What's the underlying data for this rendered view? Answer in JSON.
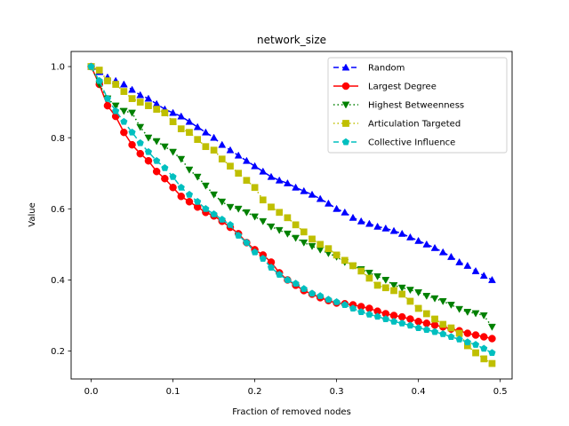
{
  "chart_data": {
    "type": "line",
    "title": "network_size",
    "xlabel": "Fraction of removed nodes",
    "ylabel": "Value",
    "xlim": [
      -0.0245,
      0.5145
    ],
    "ylim": [
      0.1215,
      1.0425
    ],
    "xticks": [
      0.0,
      0.1,
      0.2,
      0.3,
      0.4,
      0.5
    ],
    "xtick_labels": [
      "0.0",
      "0.1",
      "0.2",
      "0.3",
      "0.4",
      "0.5"
    ],
    "yticks": [
      0.2,
      0.4,
      0.6,
      0.8,
      1.0
    ],
    "ytick_labels": [
      "0.2",
      "0.4",
      "0.6",
      "0.8",
      "1.0"
    ],
    "grid": false,
    "legend_position": "top-right",
    "x": [
      0.0,
      0.01,
      0.02,
      0.03,
      0.04,
      0.05,
      0.06,
      0.07,
      0.08,
      0.09,
      0.1,
      0.11,
      0.12,
      0.13,
      0.14,
      0.15,
      0.16,
      0.17,
      0.18,
      0.19,
      0.2,
      0.21,
      0.22,
      0.23,
      0.24,
      0.25,
      0.26,
      0.27,
      0.28,
      0.29,
      0.3,
      0.31,
      0.32,
      0.33,
      0.34,
      0.35,
      0.36,
      0.37,
      0.38,
      0.39,
      0.4,
      0.41,
      0.42,
      0.43,
      0.44,
      0.45,
      0.46,
      0.47,
      0.48,
      0.49
    ],
    "series": [
      {
        "name": "Random",
        "color": "#0000ff",
        "marker": "triangle",
        "dash": "6,4",
        "values": [
          1.0,
          0.985,
          0.97,
          0.96,
          0.95,
          0.935,
          0.92,
          0.91,
          0.895,
          0.88,
          0.87,
          0.86,
          0.845,
          0.83,
          0.815,
          0.8,
          0.78,
          0.765,
          0.75,
          0.735,
          0.72,
          0.705,
          0.69,
          0.68,
          0.672,
          0.66,
          0.65,
          0.64,
          0.628,
          0.615,
          0.6,
          0.59,
          0.575,
          0.565,
          0.558,
          0.55,
          0.545,
          0.538,
          0.53,
          0.52,
          0.51,
          0.5,
          0.49,
          0.478,
          0.465,
          0.45,
          0.44,
          0.425,
          0.412,
          0.4
        ]
      },
      {
        "name": "Largest Degree",
        "color": "#ff0000",
        "marker": "circle",
        "dash": "",
        "values": [
          1.0,
          0.95,
          0.89,
          0.86,
          0.815,
          0.78,
          0.755,
          0.735,
          0.705,
          0.685,
          0.66,
          0.635,
          0.62,
          0.605,
          0.59,
          0.58,
          0.565,
          0.548,
          0.53,
          0.505,
          0.485,
          0.47,
          0.45,
          0.42,
          0.4,
          0.385,
          0.37,
          0.36,
          0.35,
          0.342,
          0.335,
          0.333,
          0.33,
          0.325,
          0.32,
          0.312,
          0.305,
          0.3,
          0.296,
          0.29,
          0.283,
          0.278,
          0.273,
          0.268,
          0.262,
          0.257,
          0.25,
          0.245,
          0.24,
          0.235
        ]
      },
      {
        "name": "Highest Betweenness",
        "color": "#008000",
        "marker": "triangle-down",
        "dash": "1.5,3",
        "values": [
          1.0,
          0.95,
          0.91,
          0.89,
          0.875,
          0.87,
          0.83,
          0.8,
          0.79,
          0.775,
          0.76,
          0.74,
          0.71,
          0.69,
          0.665,
          0.64,
          0.62,
          0.605,
          0.6,
          0.59,
          0.578,
          0.565,
          0.55,
          0.54,
          0.53,
          0.518,
          0.505,
          0.495,
          0.485,
          0.475,
          0.465,
          0.45,
          0.44,
          0.43,
          0.42,
          0.41,
          0.4,
          0.385,
          0.378,
          0.372,
          0.365,
          0.355,
          0.348,
          0.34,
          0.33,
          0.318,
          0.31,
          0.306,
          0.3,
          0.268
        ]
      },
      {
        "name": "Articulation Targeted",
        "color": "#bfbf00",
        "marker": "square",
        "dash": "1.5,3",
        "values": [
          1.0,
          0.99,
          0.96,
          0.95,
          0.93,
          0.91,
          0.9,
          0.89,
          0.88,
          0.87,
          0.845,
          0.825,
          0.815,
          0.795,
          0.775,
          0.765,
          0.74,
          0.72,
          0.7,
          0.68,
          0.66,
          0.625,
          0.605,
          0.59,
          0.575,
          0.555,
          0.535,
          0.515,
          0.5,
          0.488,
          0.47,
          0.455,
          0.44,
          0.425,
          0.405,
          0.385,
          0.378,
          0.37,
          0.36,
          0.34,
          0.32,
          0.305,
          0.29,
          0.275,
          0.265,
          0.25,
          0.215,
          0.195,
          0.178,
          0.165
        ]
      },
      {
        "name": "Collective Influence",
        "color": "#00bfbf",
        "marker": "pentagon",
        "dash": "6,4",
        "values": [
          1.0,
          0.96,
          0.91,
          0.875,
          0.845,
          0.815,
          0.785,
          0.76,
          0.735,
          0.715,
          0.69,
          0.66,
          0.64,
          0.62,
          0.6,
          0.585,
          0.57,
          0.555,
          0.525,
          0.505,
          0.478,
          0.46,
          0.435,
          0.415,
          0.4,
          0.39,
          0.375,
          0.362,
          0.355,
          0.345,
          0.338,
          0.33,
          0.32,
          0.31,
          0.303,
          0.297,
          0.29,
          0.283,
          0.278,
          0.272,
          0.265,
          0.26,
          0.254,
          0.248,
          0.24,
          0.233,
          0.225,
          0.218,
          0.207,
          0.195
        ]
      }
    ]
  }
}
